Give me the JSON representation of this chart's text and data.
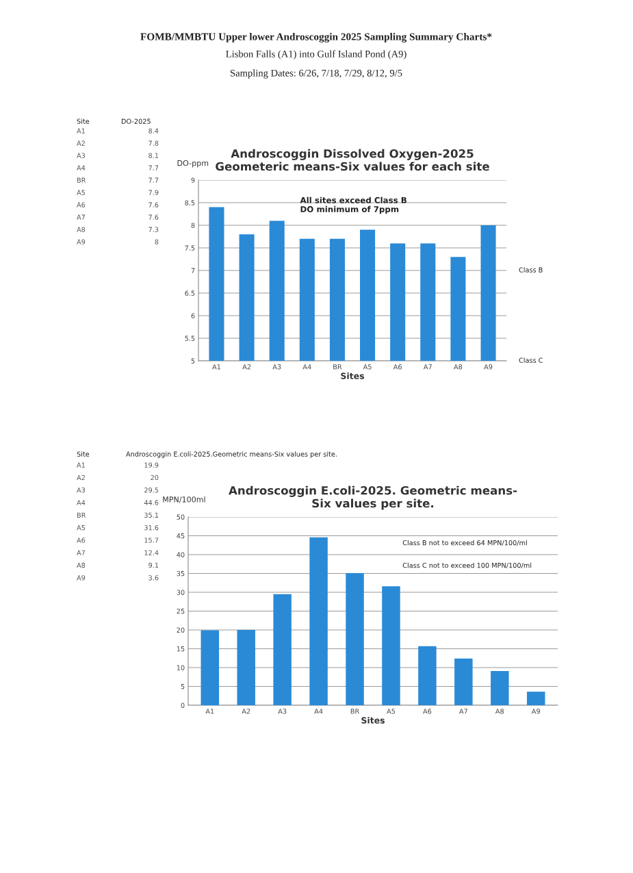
{
  "chart_data": [
    {
      "type": "other",
      "annotations": [
        "Site",
        "DO-2025",
        "A1",
        "8.4",
        "A2",
        "7.8",
        "A3",
        "8.1",
        "A4",
        "7.7",
        "BR",
        "7.7",
        "A5",
        "7.9",
        "A6",
        "7.6",
        "A7",
        "7.6",
        "A8",
        "7.3",
        "A9",
        "8"
      ]
    },
    {
      "type": "bar",
      "title": "Androscoggin Dissolved Oxygen-2025\nGeometeric means-Six values for each site",
      "xlabel": "Sites",
      "ylabel": "DO-ppm",
      "categories": [
        "A1",
        "A2",
        "A3",
        "A4",
        "BR",
        "A5",
        "A6",
        "A7",
        "A8",
        "A9"
      ],
      "values": [
        8.4,
        7.8,
        8.1,
        7.7,
        7.7,
        7.9,
        7.6,
        7.6,
        7.3,
        8
      ],
      "color": "#2a8ad6",
      "ylim": [
        5,
        9
      ],
      "yticks": [
        5,
        5.5,
        6,
        6.5,
        7,
        7.5,
        8,
        8.5,
        9
      ],
      "grid": "y",
      "annotations": [
        "FOMB/MMBTU Upper lower Androscoggin 2025 Sampling Summary Charts*",
        "Lisbon Falls (A1) into Gulf Island Pond (A9)",
        "Sampling Dates: 6/26, 7/18, 7/29, 8/12, 9/5",
        "All sites exceed Class B\nDO minimum of 7ppm",
        "Class B",
        "Class C"
      ]
    },
    {
      "type": "other",
      "annotations": [
        "Site",
        "Androscoggin E.coli-2025.Geometric means-Six values per site.",
        "A1",
        "19.9",
        "A2",
        "20",
        "A3",
        "29.5",
        "A4",
        "44.6",
        "BR",
        "35.1",
        "A5",
        "31.6",
        "A6",
        "15.7",
        "A7",
        "12.4",
        "A8",
        "9.1",
        "A9",
        "3.6"
      ]
    },
    {
      "type": "bar",
      "title": "Androscoggin E.coli-2025. Geometric means-\nSix values per site.",
      "xlabel": "Sites",
      "ylabel": "MPN/100ml",
      "categories": [
        "A1",
        "A2",
        "A3",
        "A4",
        "BR",
        "A5",
        "A6",
        "A7",
        "A8",
        "A9"
      ],
      "values": [
        19.9,
        20,
        29.5,
        44.6,
        35.1,
        31.6,
        15.7,
        12.4,
        9.1,
        3.6
      ],
      "color": "#2a8ad6",
      "ylim": [
        0,
        50
      ],
      "yticks": [
        0,
        5,
        10,
        15,
        20,
        25,
        30,
        35,
        40,
        45,
        50
      ],
      "grid": "y",
      "annotations": [
        "Class B not to exceed 64 MPN/100/ml",
        "Class C not to exceed 100 MPN/100/ml"
      ]
    }
  ]
}
